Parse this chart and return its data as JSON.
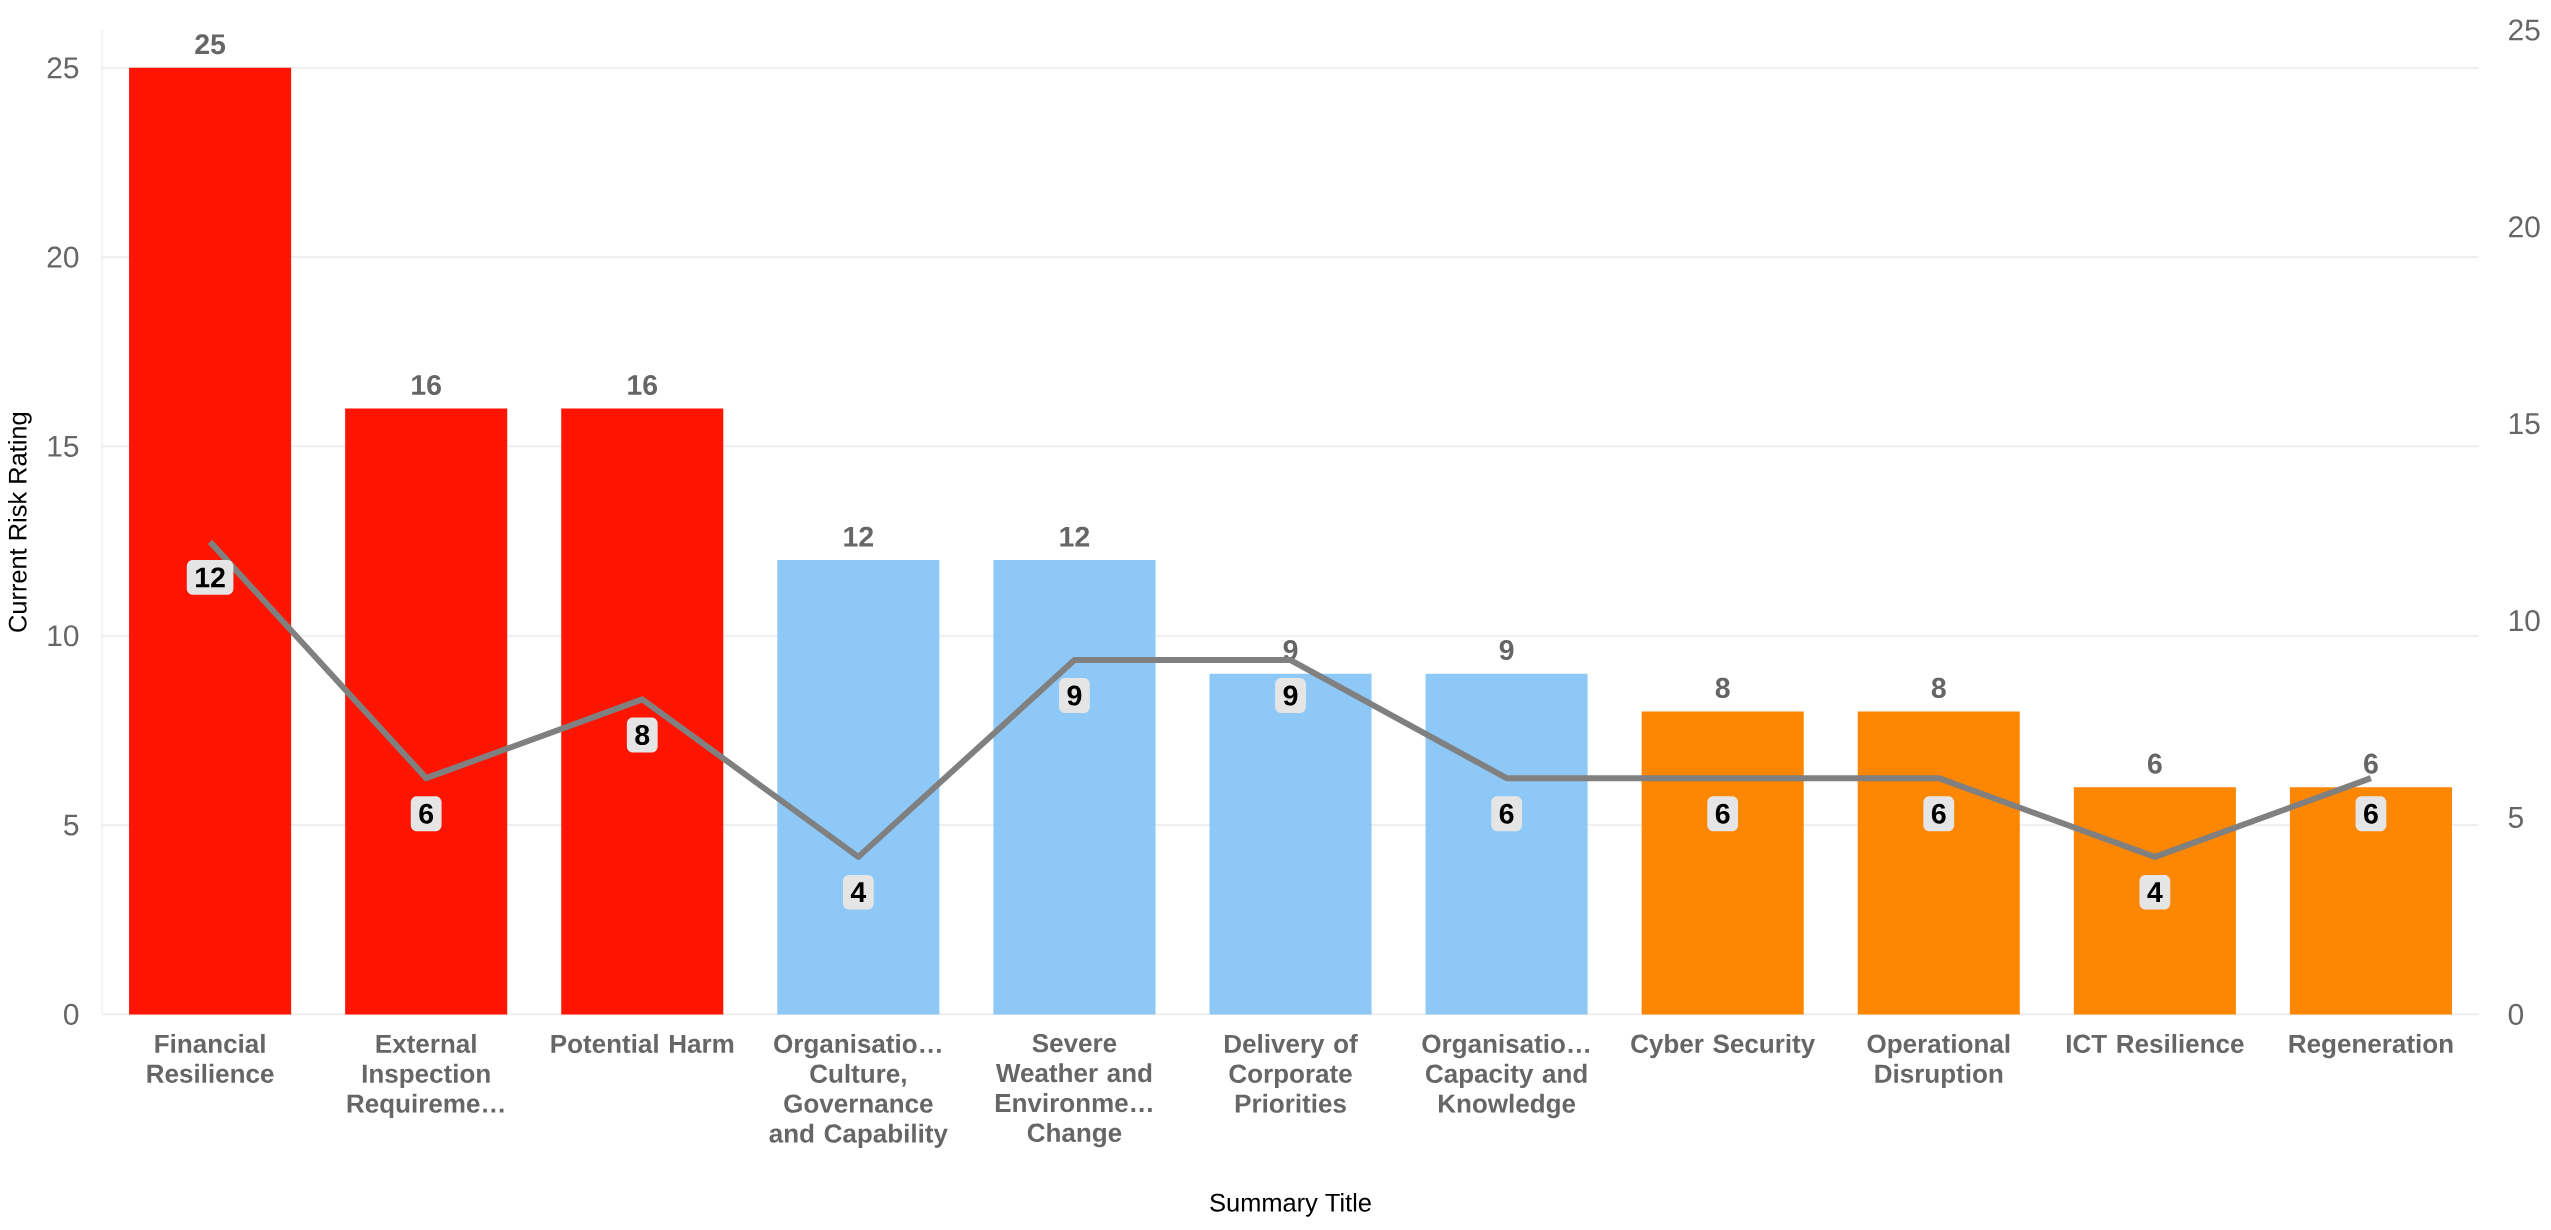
{
  "chart_data": {
    "type": "bar",
    "xlabel": "Summary Title",
    "ylabel": "Current Risk Rating",
    "categories": [
      "Financial Resilience",
      "External Inspection Requireme…",
      "Potential Harm",
      "Organisatio… Culture, Governance and Capability",
      "Severe Weather and Environme… Change",
      "Delivery of Corporate Priorities",
      "Organisatio… Capacity and Knowledge",
      "Cyber Security",
      "Operational Disruption",
      "ICT Resilience",
      "Regeneration"
    ],
    "series": [
      {
        "colors": [
          "#fd1502",
          "#fd1502",
          "#fd1502",
          "#8ec8f6",
          "#8ec8f6",
          "#8ec8f6",
          "#8ec8f6",
          "#fd8602",
          "#fd8602",
          "#fd8602",
          "#fd8602"
        ],
        "values": [
          25,
          16,
          16,
          12,
          12,
          9,
          9,
          8,
          8,
          6,
          6
        ]
      },
      {
        "type": "line",
        "axis": "y2",
        "color": "#808080",
        "values": [
          12,
          6,
          8,
          4,
          9,
          9,
          6,
          6,
          6,
          4,
          6
        ]
      }
    ],
    "ylim": [
      0,
      26
    ],
    "yticks": [
      0,
      5,
      10,
      15,
      20,
      25
    ],
    "y2lim": [
      0,
      25
    ],
    "y2ticks": [
      0,
      5,
      10,
      15,
      20,
      25
    ],
    "grid": "y",
    "data_labels": true
  }
}
